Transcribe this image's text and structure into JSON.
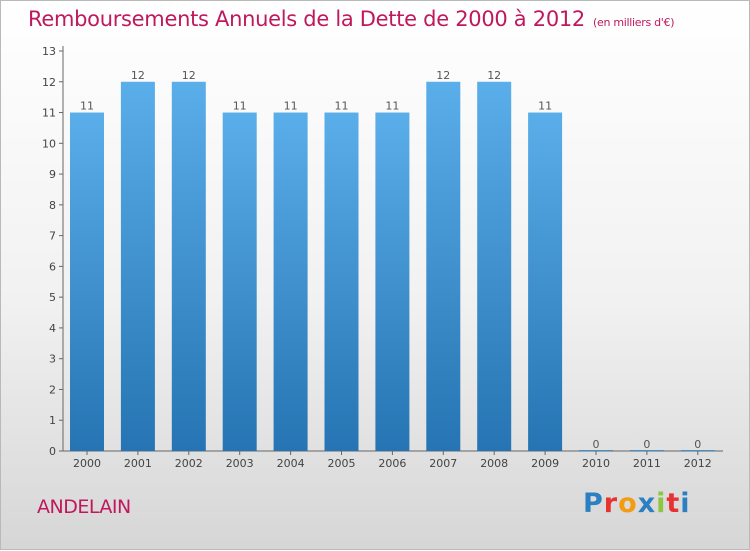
{
  "title": "Remboursements Annuels de la Dette de 2000 à 2012",
  "subtitle": "(en milliers d'€)",
  "commune": "ANDELAIN",
  "logo": {
    "text": "Proxiti",
    "colors": [
      "#2c7fc1",
      "#e8322f",
      "#f39c12",
      "#2c7fc1",
      "#8dc63f",
      "#e8322f",
      "#2c7fc1"
    ]
  },
  "chart_data": {
    "type": "bar",
    "categories": [
      "2000",
      "2001",
      "2002",
      "2003",
      "2004",
      "2005",
      "2006",
      "2007",
      "2008",
      "2009",
      "2010",
      "2011",
      "2012"
    ],
    "values": [
      11,
      12,
      12,
      11,
      11,
      11,
      11,
      12,
      12,
      11,
      0,
      0,
      0
    ],
    "data_labels": [
      "11",
      "12",
      "12",
      "11",
      "11",
      "11",
      "11",
      "12",
      "12",
      "11",
      "0",
      "0",
      "0"
    ],
    "y_ticks": [
      0,
      1,
      2,
      3,
      4,
      5,
      6,
      7,
      8,
      9,
      10,
      11,
      12,
      13
    ],
    "ylim": [
      0,
      13
    ],
    "xlabel": "",
    "ylabel": "",
    "grid": false,
    "bar_color_top": "#5aaee9",
    "bar_color_bottom": "#2674b3"
  }
}
